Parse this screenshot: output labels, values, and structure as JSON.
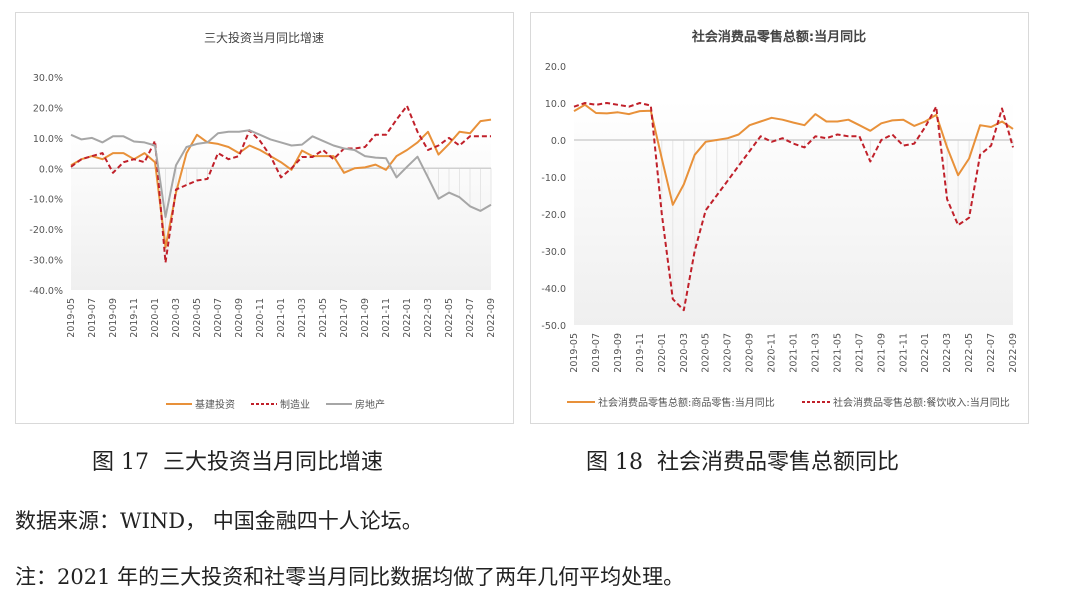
{
  "chart_data": [
    {
      "type": "line",
      "title": "三大投资当月同比增速",
      "ylim": [
        -40,
        30
      ],
      "yticks": [
        "30.0%",
        "20.0%",
        "10.0%",
        "0.0%",
        "-10.0%",
        "-20.0%",
        "-30.0%",
        "-40.0%"
      ],
      "ytick_values": [
        30,
        20,
        10,
        0,
        -10,
        -20,
        -30,
        -40
      ],
      "xtick_labels": [
        "2019-05",
        "2019-07",
        "2019-09",
        "2019-11",
        "2020-01",
        "2020-03",
        "2020-05",
        "2020-07",
        "2020-09",
        "2020-11",
        "2021-01",
        "2021-03",
        "2021-05",
        "2021-07",
        "2021-09",
        "2021-11",
        "2022-01",
        "2022-03",
        "2022-05",
        "2022-07",
        "2022-09"
      ],
      "x_start": "2019-05",
      "x_end": "2022-09",
      "legend": "bottom",
      "series": [
        {
          "name": "基建投资",
          "color": "#e8913a",
          "dash": false,
          "values": [
            1,
            3,
            4,
            3,
            5,
            5,
            3,
            5,
            2,
            -26,
            -8,
            5,
            11,
            8.5,
            8,
            7,
            5,
            7.5,
            6,
            4,
            2,
            -0.5,
            5.8,
            4,
            4,
            4,
            -1.5,
            0,
            0.3,
            1.2,
            -0.5,
            4,
            6,
            8.5,
            12,
            4.5,
            8,
            12,
            11.5,
            15.5,
            16
          ]
        },
        {
          "name": "制造业",
          "color": "#c0202a",
          "dash": true,
          "values": [
            0.5,
            3,
            4,
            5,
            -1.5,
            2,
            3,
            2,
            9,
            -31,
            -7,
            -5.5,
            -4,
            -3.5,
            5,
            3,
            4,
            12.5,
            9,
            4,
            -3,
            0,
            3.7,
            3.7,
            6,
            3,
            6.5,
            6.5,
            7,
            11,
            11,
            16,
            20.5,
            12,
            6,
            7.5,
            10,
            7.5,
            10.5,
            10.5,
            10.5
          ]
        },
        {
          "name": "房地产",
          "color": "#a6a6a6",
          "dash": false,
          "values": [
            11,
            9.5,
            10,
            8.5,
            10.5,
            10.5,
            8.8,
            8.5,
            7.5,
            -16,
            1,
            7,
            8,
            8.5,
            11.5,
            12,
            12,
            12.5,
            11,
            9.5,
            8.5,
            7.5,
            7.8,
            10.5,
            9,
            7.5,
            6.5,
            6,
            4,
            3.5,
            3.3,
            -3,
            0.5,
            3.8,
            -3,
            -10,
            -8,
            -9.5,
            -12.5,
            -14,
            -12
          ]
        }
      ]
    },
    {
      "type": "line",
      "title": "社会消费品零售总额:当月同比",
      "ylim": [
        -50,
        20
      ],
      "yticks": [
        "20.0",
        "10.0",
        "0.0",
        "-10.0",
        "-20.0",
        "-30.0",
        "-40.0",
        "-50.0"
      ],
      "ytick_values": [
        20,
        10,
        0,
        -10,
        -20,
        -30,
        -40,
        -50
      ],
      "xtick_labels": [
        "2019-05",
        "2019-07",
        "2019-09",
        "2019-11",
        "2020-01",
        "2020-03",
        "2020-05",
        "2020-07",
        "2020-09",
        "2020-11",
        "2021-01",
        "2021-03",
        "2021-05",
        "2021-07",
        "2021-09",
        "2021-11",
        "2022-01",
        "2022-03",
        "2022-05",
        "2022-07",
        "2022-09"
      ],
      "x_start": "2019-05",
      "x_end": "2022-09",
      "legend": "bottom",
      "series": [
        {
          "name": "社会消费品零售总额:商品零售:当月同比",
          "color": "#e8913a",
          "dash": false,
          "values": [
            7.8,
            9.5,
            7.3,
            7.2,
            7.5,
            7,
            7.8,
            7.9,
            -5,
            -17.5,
            -12,
            -4,
            -0.5,
            0,
            0.5,
            1.5,
            4,
            5,
            6,
            5.5,
            4.7,
            4,
            7,
            5,
            5,
            5.5,
            4,
            2.5,
            4.5,
            5.3,
            5.5,
            3.8,
            5,
            6.8,
            -2,
            -9.5,
            -5,
            4,
            3.5,
            5,
            3
          ]
        },
        {
          "name": "社会消费品零售总额:餐饮收入:当月同比",
          "color": "#c0202a",
          "dash": true,
          "values": [
            9,
            10,
            9.5,
            10,
            9.5,
            9,
            10,
            9.3,
            -20,
            -43,
            -46,
            -30,
            -19,
            -15,
            -11,
            -7,
            -3,
            1,
            -0.5,
            0.5,
            -1,
            -2,
            1,
            0.5,
            1.5,
            1,
            1,
            -5.8,
            0,
            1.5,
            -1.5,
            -1,
            3.5,
            9,
            -16,
            -23,
            -21,
            -4,
            -1.5,
            8.5,
            -2
          ]
        }
      ]
    }
  ],
  "captions": {
    "fig17": "图 17  三大投资当月同比增速",
    "fig18": "图 18  社会消费品零售总额同比"
  },
  "source_text": "数据来源：WIND， 中国金融四十人论坛。",
  "note_text": "注：2021 年的三大投资和社零当月同比数据均做了两年几何平均处理。"
}
